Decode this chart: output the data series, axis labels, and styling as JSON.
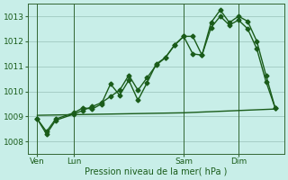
{
  "title": "Pression niveau de la mer( hPa )",
  "bg_color": "#c8eee8",
  "grid_color": "#a0c8c0",
  "line_color": "#1a5c1a",
  "axis_color": "#336633",
  "xlim": [
    0,
    84
  ],
  "ylim": [
    1007.5,
    1013.5
  ],
  "yticks": [
    1008,
    1009,
    1010,
    1011,
    1012,
    1013
  ],
  "xtick_labels": [
    "Ven",
    "Lun",
    "Sam",
    "Dim"
  ],
  "xtick_positions": [
    3,
    15,
    51,
    69
  ],
  "vlines": [
    3,
    15,
    51,
    69
  ],
  "series": [
    {
      "x": [
        3,
        6,
        9,
        15,
        18,
        21,
        24,
        27,
        30,
        33,
        36,
        39,
        42,
        45,
        48,
        51,
        54,
        57,
        60,
        63,
        66,
        69,
        72,
        75,
        78,
        81
      ],
      "y": [
        1008.9,
        1008.3,
        1008.85,
        1009.1,
        1009.25,
        1009.4,
        1009.55,
        1009.8,
        1010.05,
        1010.65,
        1010.05,
        1010.55,
        1011.05,
        1011.35,
        1011.85,
        1012.2,
        1012.2,
        1011.45,
        1012.75,
        1013.25,
        1012.75,
        1013.0,
        1012.8,
        1012.0,
        1010.65,
        1009.35
      ],
      "marker": "D",
      "markersize": 2.5,
      "linewidth": 1.0
    },
    {
      "x": [
        3,
        6,
        9,
        15,
        18,
        21,
        24,
        27,
        30,
        33,
        36,
        39,
        42,
        45,
        48,
        51,
        54,
        57,
        60,
        63,
        66,
        69,
        72,
        75,
        78,
        81
      ],
      "y": [
        1008.9,
        1008.4,
        1008.9,
        1009.15,
        1009.35,
        1009.3,
        1009.5,
        1010.3,
        1009.85,
        1010.45,
        1009.65,
        1010.35,
        1011.1,
        1011.35,
        1011.85,
        1012.2,
        1011.5,
        1011.45,
        1012.55,
        1013.0,
        1012.65,
        1012.85,
        1012.5,
        1011.7,
        1010.4,
        1009.35
      ],
      "marker": "D",
      "markersize": 2.5,
      "linewidth": 1.0
    },
    {
      "x": [
        3,
        51,
        81
      ],
      "y": [
        1009.05,
        1009.15,
        1009.3
      ],
      "marker": null,
      "markersize": 0,
      "linewidth": 1.0
    }
  ]
}
